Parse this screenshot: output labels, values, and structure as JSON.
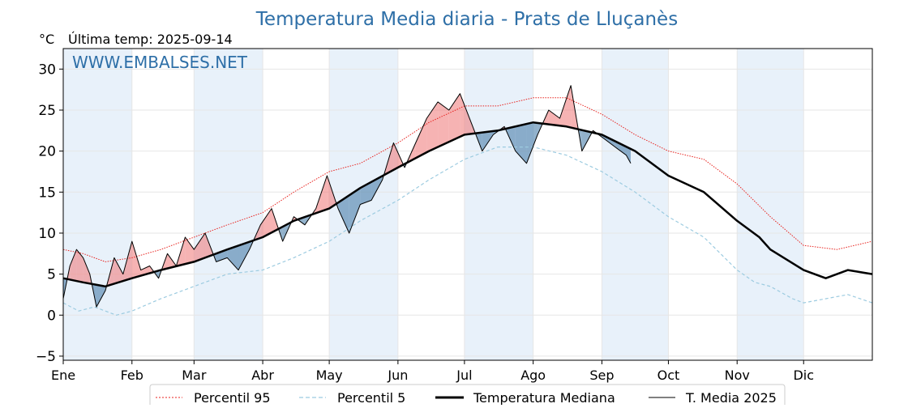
{
  "chart_data": {
    "type": "line",
    "title": "Temperatura Media diaria - Prats de Lluçanès",
    "unit_label": "°C",
    "last_temp_label": "Última temp: 2025-09-14",
    "watermark": "WWW.EMBALSES.NET",
    "ylim": [
      -5.5,
      32.5
    ],
    "y_ticks": [
      -5,
      0,
      5,
      10,
      15,
      20,
      25,
      30
    ],
    "y_tick_labels": [
      "−5",
      "0",
      "5",
      "10",
      "15",
      "20",
      "25",
      "30"
    ],
    "x_tick_days": [
      1,
      32,
      60,
      91,
      121,
      152,
      182,
      213,
      244,
      274,
      305,
      335
    ],
    "x_tick_labels": [
      "Ene",
      "Feb",
      "Mar",
      "Abr",
      "May",
      "Jun",
      "Jul",
      "Ago",
      "Sep",
      "Oct",
      "Nov",
      "Dic"
    ],
    "x_range_days": [
      1,
      366
    ],
    "shaded_months": [
      "Ene",
      "Mar",
      "May",
      "Jul",
      "Sep",
      "Nov"
    ],
    "grid": true,
    "legend_position": "bottom",
    "colors": {
      "title": "#2e6fa7",
      "p95": "#e8231f",
      "p5": "#9ccbe0",
      "median": "#000000",
      "media2025": "#000000",
      "fill_above": "#f08080",
      "fill_below": "#4a7eaa",
      "month_shade": "#e8f1fa"
    },
    "series": [
      {
        "name": "Percentil 95",
        "style": "dotted",
        "x": [
          1,
          10,
          20,
          32,
          45,
          60,
          75,
          91,
          105,
          121,
          135,
          152,
          166,
          182,
          197,
          213,
          228,
          244,
          259,
          274,
          290,
          305,
          320,
          335,
          350,
          366
        ],
        "y": [
          8,
          7.5,
          6.5,
          7,
          8,
          9.5,
          11,
          12.5,
          15,
          17.5,
          18.5,
          21,
          23.5,
          25.5,
          25.5,
          26.5,
          26.5,
          24.5,
          22,
          20,
          19,
          16,
          12,
          8.5,
          8,
          9
        ]
      },
      {
        "name": "Percentil 5",
        "style": "dashed",
        "x": [
          1,
          8,
          15,
          25,
          32,
          45,
          60,
          75,
          91,
          105,
          121,
          135,
          152,
          166,
          182,
          197,
          213,
          228,
          244,
          259,
          274,
          290,
          305,
          313,
          320,
          330,
          335,
          345,
          355,
          366
        ],
        "y": [
          1.5,
          0.5,
          1,
          0,
          0.5,
          2,
          3.5,
          5,
          5.5,
          7,
          9,
          11.5,
          14,
          16.5,
          19,
          20.5,
          20.5,
          19.5,
          17.5,
          15,
          12,
          9.5,
          5.5,
          4,
          3.5,
          2,
          1.5,
          2,
          2.5,
          1.5
        ]
      },
      {
        "name": "Temperatura Mediana",
        "style": "solid-thick",
        "x": [
          1,
          10,
          20,
          32,
          45,
          60,
          75,
          91,
          105,
          121,
          135,
          152,
          166,
          182,
          197,
          213,
          228,
          244,
          259,
          274,
          290,
          305,
          315,
          320,
          335,
          345,
          355,
          366
        ],
        "y": [
          4.5,
          4,
          3.5,
          4.5,
          5.5,
          6.5,
          8,
          9.5,
          11.5,
          13,
          15.5,
          18,
          20,
          22,
          22.5,
          23.5,
          23,
          22,
          20,
          17,
          15,
          11.5,
          9.5,
          8,
          5.5,
          4.5,
          5.5,
          5
        ]
      },
      {
        "name": "T. Media 2025",
        "style": "solid-thin",
        "x": [
          1,
          4,
          7,
          10,
          13,
          16,
          20,
          24,
          28,
          32,
          36,
          40,
          44,
          48,
          52,
          56,
          60,
          65,
          70,
          75,
          80,
          85,
          90,
          95,
          100,
          105,
          110,
          115,
          120,
          125,
          130,
          135,
          140,
          145,
          150,
          155,
          160,
          165,
          170,
          175,
          180,
          185,
          190,
          195,
          200,
          205,
          210,
          215,
          220,
          225,
          230,
          235,
          240,
          245,
          250,
          255,
          257
        ],
        "y": [
          2,
          6,
          8,
          7,
          5,
          1,
          3,
          7,
          5,
          9,
          5.5,
          6,
          4.5,
          7.5,
          6,
          9.5,
          8,
          10,
          6.5,
          7,
          5.5,
          8,
          11,
          13,
          9,
          12,
          11,
          13,
          17,
          13,
          10,
          13.5,
          14,
          16.5,
          21,
          18,
          21,
          24,
          26,
          25,
          27,
          23.5,
          20,
          22,
          23,
          20,
          18.5,
          22,
          25,
          24,
          28,
          20,
          22.5,
          21.5,
          20.5,
          19.5,
          18.5
        ]
      }
    ],
    "legend": [
      {
        "label": "Percentil 95"
      },
      {
        "label": "Percentil 5"
      },
      {
        "label": "Temperatura Mediana"
      },
      {
        "label": "T. Media 2025"
      }
    ]
  }
}
